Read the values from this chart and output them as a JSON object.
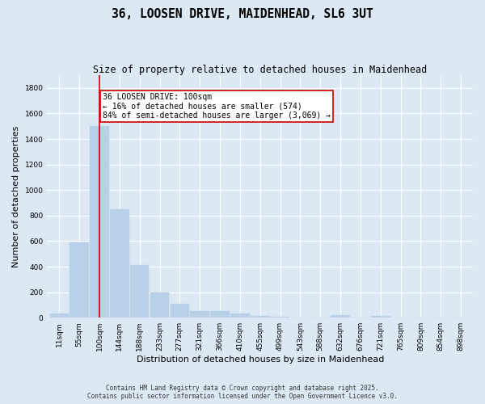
{
  "title": "36, LOOSEN DRIVE, MAIDENHEAD, SL6 3UT",
  "subtitle": "Size of property relative to detached houses in Maidenhead",
  "xlabel": "Distribution of detached houses by size in Maidenhead",
  "ylabel": "Number of detached properties",
  "categories": [
    "11sqm",
    "55sqm",
    "100sqm",
    "144sqm",
    "188sqm",
    "233sqm",
    "277sqm",
    "321sqm",
    "366sqm",
    "410sqm",
    "455sqm",
    "499sqm",
    "543sqm",
    "588sqm",
    "632sqm",
    "676sqm",
    "721sqm",
    "765sqm",
    "809sqm",
    "854sqm",
    "898sqm"
  ],
  "values": [
    30,
    590,
    1500,
    850,
    410,
    200,
    110,
    55,
    50,
    35,
    15,
    5,
    0,
    0,
    20,
    0,
    15,
    0,
    0,
    0,
    0
  ],
  "bar_color": "#b8d0e8",
  "bar_edge_color": "#b8d0e8",
  "vline_x": 2,
  "vline_color": "#cc0000",
  "annotation_line1": "36 LOOSEN DRIVE: 100sqm",
  "annotation_line2": "← 16% of detached houses are smaller (574)",
  "annotation_line3": "84% of semi-detached houses are larger (3,069) →",
  "annotation_box_color": "#cc0000",
  "ylim": [
    0,
    1900
  ],
  "yticks": [
    0,
    200,
    400,
    600,
    800,
    1000,
    1200,
    1400,
    1600,
    1800
  ],
  "bg_color": "#dce9f5",
  "plot_bg_color": "#dce9f5",
  "footer_line1": "Contains HM Land Registry data © Crown copyright and database right 2025.",
  "footer_line2": "Contains public sector information licensed under the Open Government Licence v3.0.",
  "title_fontsize": 10.5,
  "subtitle_fontsize": 8.5,
  "tick_fontsize": 6.5,
  "label_fontsize": 8,
  "annotation_fontsize": 7,
  "footer_fontsize": 5.5
}
